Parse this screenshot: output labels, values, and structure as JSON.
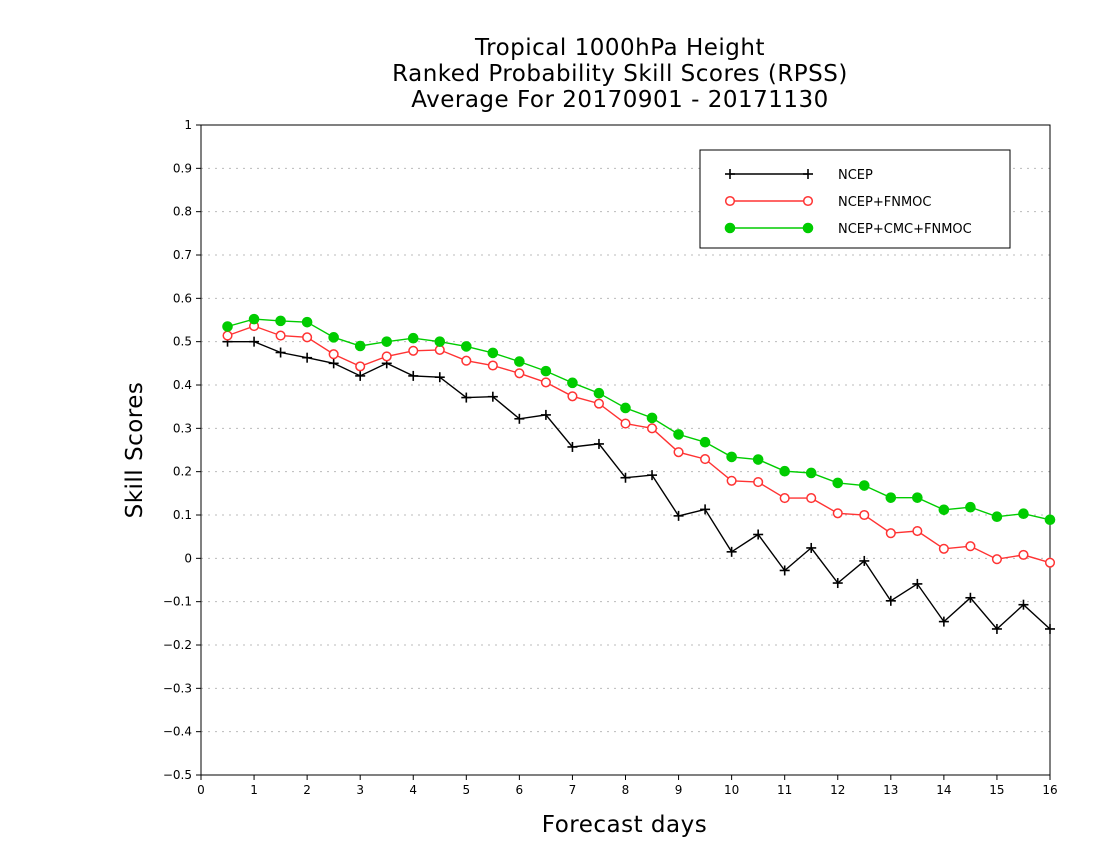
{
  "chart_data": {
    "type": "line",
    "title_lines": [
      "Tropical 1000hPa Height",
      "Ranked Probability Skill Scores (RPSS)",
      "Average For 20170901 - 20171130"
    ],
    "xlabel": "Forecast days",
    "ylabel": "Skill Scores",
    "xlim": [
      0,
      16
    ],
    "ylim": [
      -0.5,
      1
    ],
    "x_ticks": [
      "0",
      "1",
      "2",
      "3",
      "4",
      "5",
      "6",
      "7",
      "8",
      "9",
      "10",
      "11",
      "12",
      "13",
      "14",
      "15",
      "16"
    ],
    "y_ticks": [
      "1",
      "0.9",
      "0.8",
      "0.7",
      "0.6",
      "0.5",
      "0.4",
      "0.3",
      "0.2",
      "0.1",
      "0",
      "−0.1",
      "−0.2",
      "−0.3",
      "−0.4",
      "−0.5"
    ],
    "grid": "horizontal dotted",
    "legend_position": "top-right",
    "x": [
      0.5,
      1,
      1.5,
      2,
      2.5,
      3,
      3.5,
      4,
      4.5,
      5,
      5.5,
      6,
      6.5,
      7,
      7.5,
      8,
      8.5,
      9,
      9.5,
      10,
      10.5,
      11,
      11.5,
      12,
      12.5,
      13,
      13.5,
      14,
      14.5,
      15,
      15.5,
      16
    ],
    "series": [
      {
        "name": "NCEP",
        "color": "#000000",
        "marker": "plus",
        "values": [
          0.5,
          0.5,
          0.475,
          0.463,
          0.45,
          0.421,
          0.45,
          0.421,
          0.418,
          0.371,
          0.373,
          0.322,
          0.331,
          0.257,
          0.264,
          0.186,
          0.192,
          0.098,
          0.113,
          0.015,
          0.055,
          -0.028,
          0.024,
          -0.057,
          -0.006,
          -0.098,
          -0.059,
          -0.146,
          -0.091,
          -0.163,
          -0.107,
          -0.163
        ]
      },
      {
        "name": "NCEP+FNMOC",
        "color": "#ff3333",
        "marker": "open-circle",
        "values": [
          0.514,
          0.536,
          0.514,
          0.51,
          0.471,
          0.443,
          0.466,
          0.479,
          0.481,
          0.456,
          0.445,
          0.427,
          0.406,
          0.374,
          0.357,
          0.311,
          0.3,
          0.245,
          0.229,
          0.179,
          0.176,
          0.139,
          0.139,
          0.104,
          0.1,
          0.058,
          0.063,
          0.022,
          0.028,
          -0.002,
          0.008,
          -0.01
        ]
      },
      {
        "name": "NCEP+CMC+FNMOC",
        "color": "#00cc00",
        "marker": "filled-circle",
        "values": [
          0.535,
          0.552,
          0.548,
          0.545,
          0.51,
          0.49,
          0.5,
          0.508,
          0.5,
          0.489,
          0.474,
          0.454,
          0.432,
          0.405,
          0.381,
          0.347,
          0.324,
          0.286,
          0.268,
          0.234,
          0.228,
          0.201,
          0.197,
          0.174,
          0.168,
          0.14,
          0.14,
          0.112,
          0.118,
          0.096,
          0.103,
          0.089
        ]
      }
    ]
  }
}
